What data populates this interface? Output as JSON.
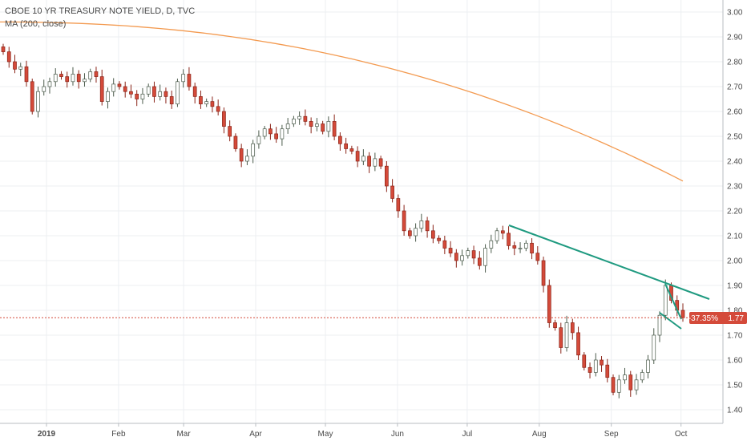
{
  "legend": {
    "title": "CBOE 10 YR TREASURY NOTE YIELD, D, TVC",
    "indicator": "MA (200, close)"
  },
  "price_tag": {
    "change": "-37.35%",
    "last": "1.77"
  },
  "colors": {
    "up": "#ffffff",
    "up_border": "#4a5a4a",
    "down": "#d44a3a",
    "down_border": "#8a2418",
    "ma": "#f39a50",
    "trendline": "#1f9a80",
    "price_line": "#d44a3a",
    "grid": "#eceff2",
    "axis": "#4a4a4a"
  },
  "chart_data": {
    "type": "candlestick",
    "title": "CBOE 10 YR TREASURY NOTE YIELD, D, TVC",
    "y_range": [
      1.36,
      3.04
    ],
    "y_ticks": [
      "3.00",
      "2.90",
      "2.80",
      "2.70",
      "2.60",
      "2.50",
      "2.40",
      "2.30",
      "2.20",
      "2.10",
      "2.00",
      "1.90",
      "1.80",
      "1.70",
      "1.60",
      "1.50",
      "1.40"
    ],
    "x_ticks": [
      "2019",
      "Feb",
      "Mar",
      "Apr",
      "May",
      "Jun",
      "Jul",
      "Aug",
      "Sep",
      "Oct"
    ],
    "x_range": [
      "2018-12-12",
      "2019-10-10"
    ],
    "x_tick_dates": [
      "2019-01-01",
      "2019-02-01",
      "2019-03-01",
      "2019-04-01",
      "2019-05-01",
      "2019-06-01",
      "2019-07-01",
      "2019-08-01",
      "2019-09-01",
      "2019-10-01"
    ],
    "close_series": [
      2.84,
      2.8,
      2.77,
      2.78,
      2.72,
      2.6,
      2.68,
      2.7,
      2.72,
      2.75,
      2.74,
      2.72,
      2.75,
      2.72,
      2.73,
      2.76,
      2.74,
      2.64,
      2.68,
      2.71,
      2.7,
      2.68,
      2.67,
      2.65,
      2.67,
      2.7,
      2.66,
      2.68,
      2.66,
      2.63,
      2.72,
      2.75,
      2.7,
      2.66,
      2.63,
      2.64,
      2.62,
      2.6,
      2.54,
      2.5,
      2.45,
      2.4,
      2.42,
      2.47,
      2.5,
      2.53,
      2.51,
      2.49,
      2.53,
      2.55,
      2.57,
      2.58,
      2.56,
      2.54,
      2.55,
      2.52,
      2.56,
      2.5,
      2.47,
      2.45,
      2.44,
      2.4,
      2.42,
      2.38,
      2.41,
      2.38,
      2.3,
      2.25,
      2.2,
      2.12,
      2.1,
      2.13,
      2.16,
      2.12,
      2.09,
      2.08,
      2.05,
      2.03,
      2.0,
      2.02,
      2.04,
      2.01,
      1.98,
      2.05,
      2.08,
      2.12,
      2.11,
      2.06,
      2.05,
      2.05,
      2.07,
      2.03,
      2.0,
      1.9,
      1.75,
      1.73,
      1.65,
      1.75,
      1.71,
      1.62,
      1.57,
      1.55,
      1.6,
      1.58,
      1.53,
      1.47,
      1.52,
      1.54,
      1.48,
      1.52,
      1.55,
      1.6,
      1.7,
      1.78,
      1.9,
      1.84,
      1.8,
      1.77
    ]
  }
}
